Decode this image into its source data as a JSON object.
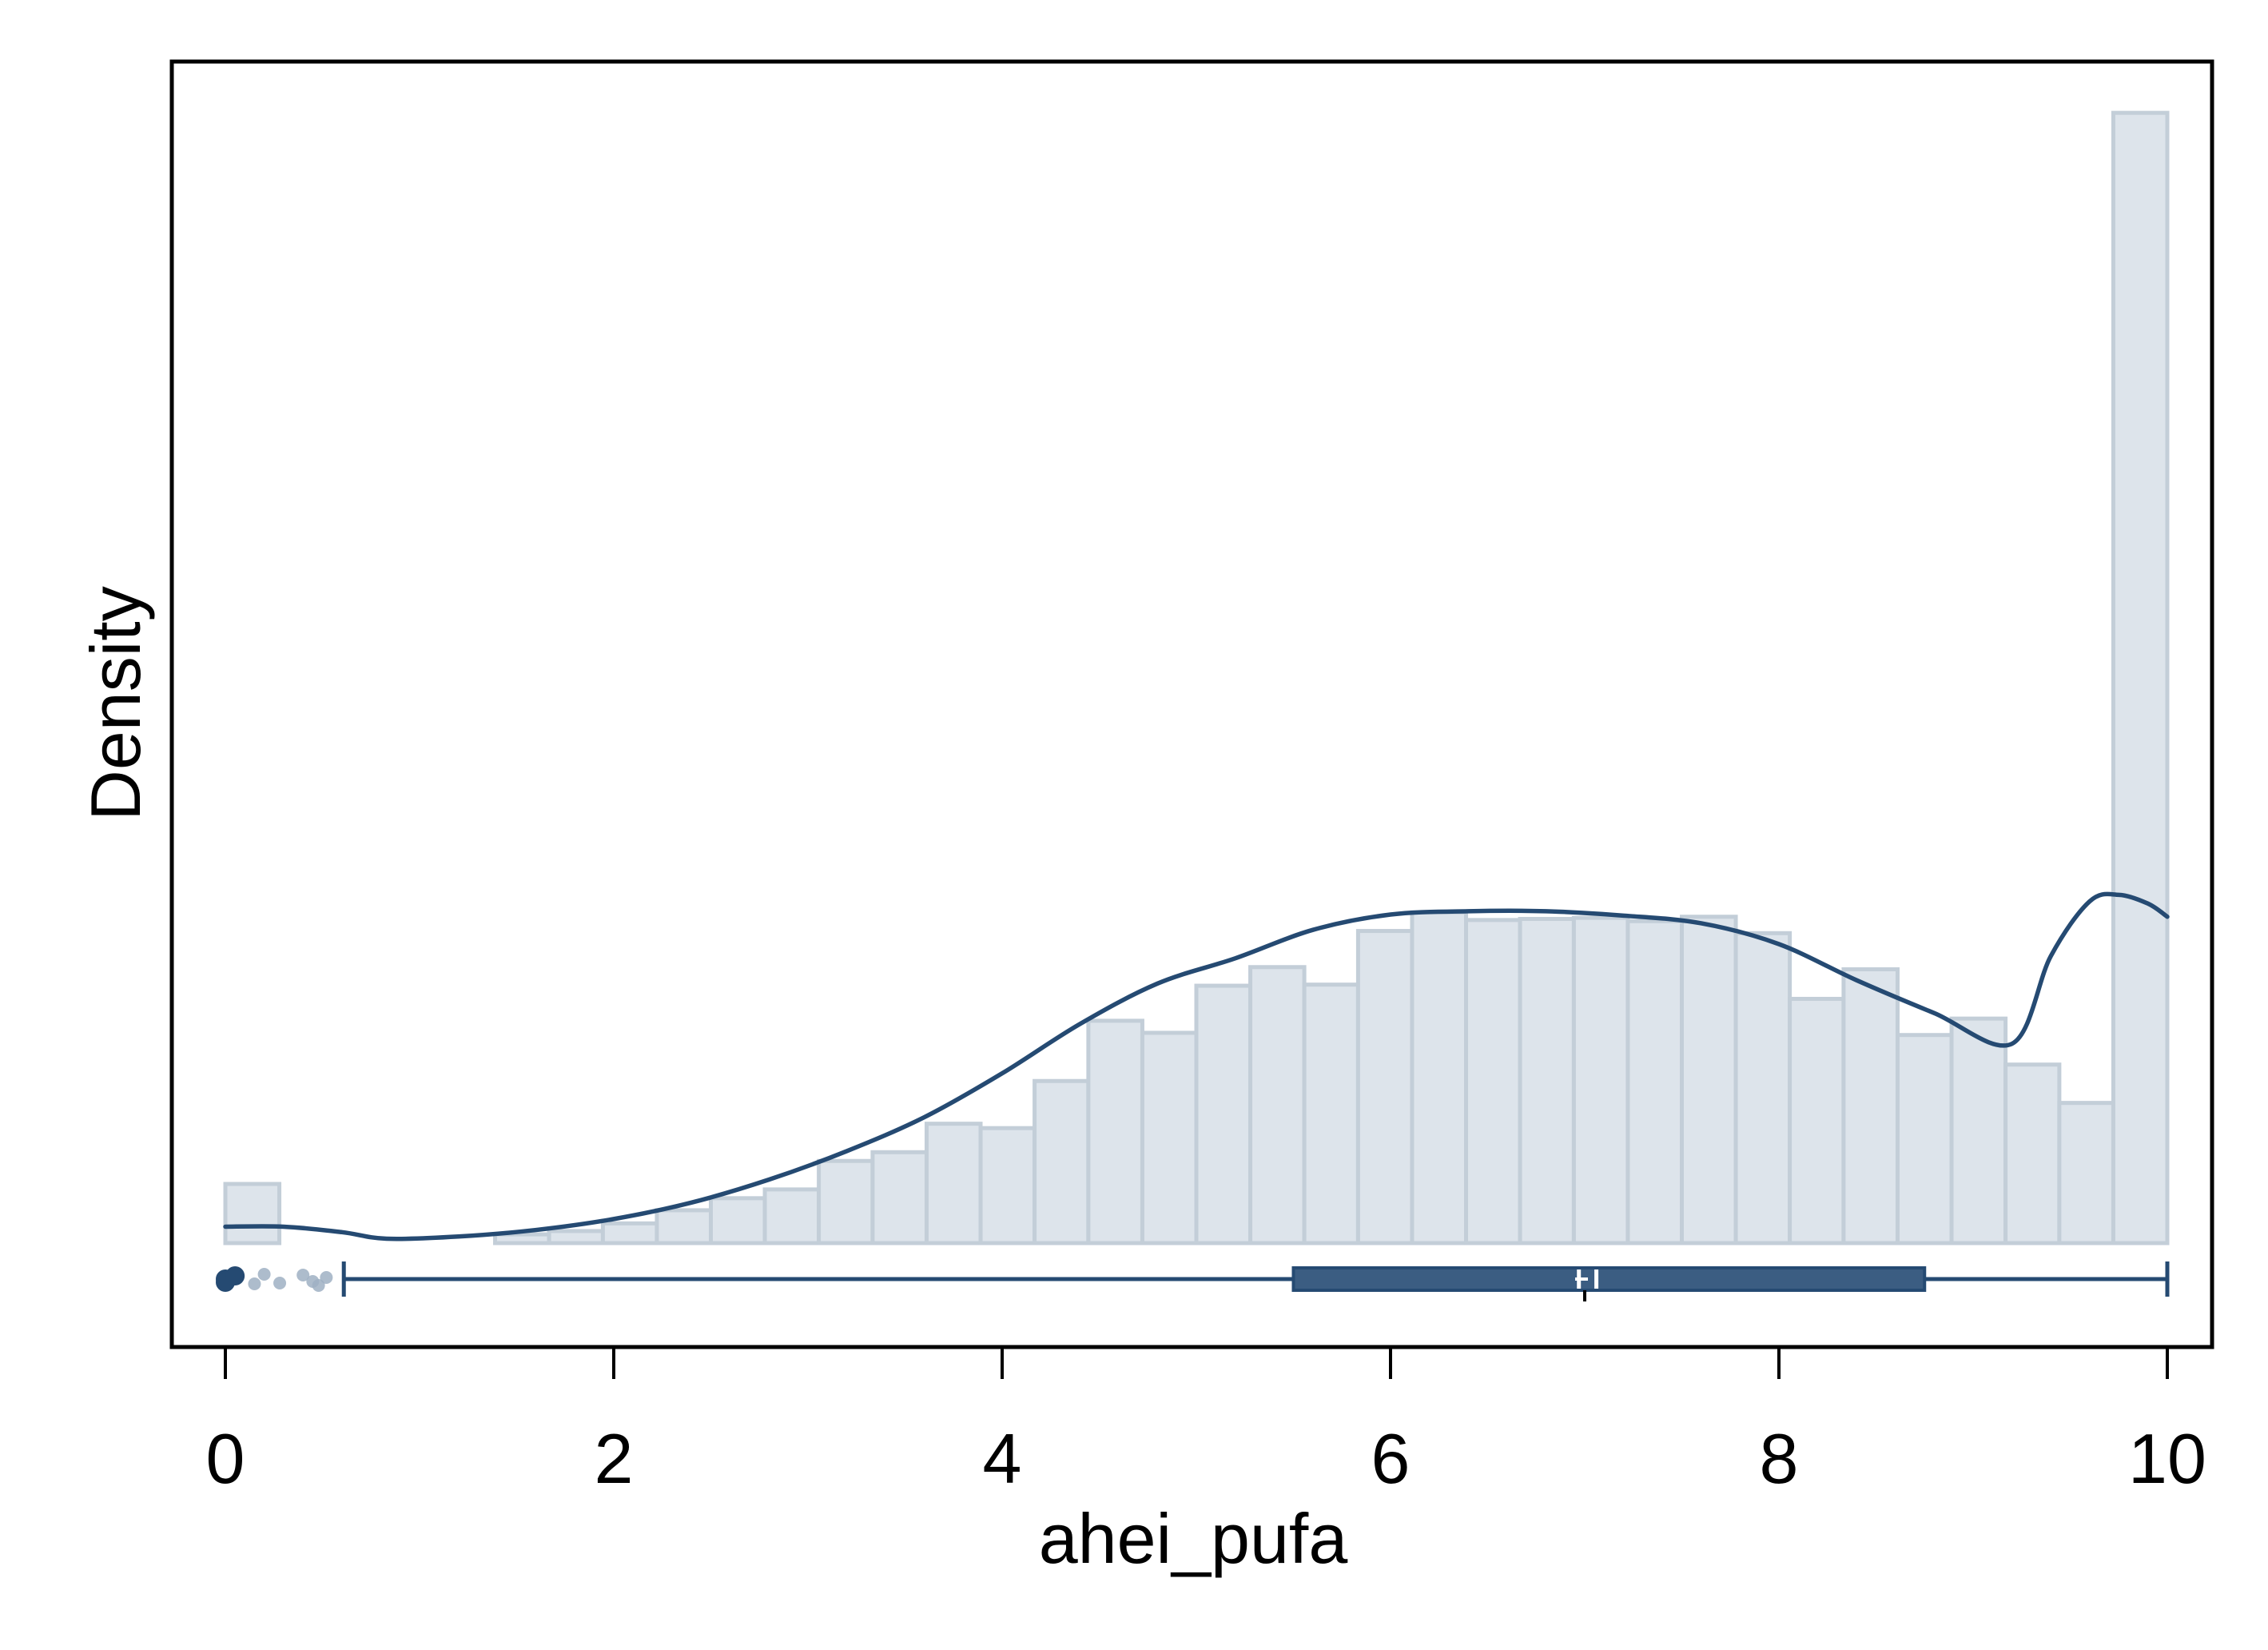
{
  "chart_data": {
    "type": "histogram",
    "xlabel": "ahei_pufa",
    "ylabel": "Density",
    "xlim": [
      -0.28,
      10.27
    ],
    "xticks": [
      0,
      2,
      4,
      6,
      8,
      10
    ],
    "y_ticks_shown": false,
    "bin_width": 0.278,
    "bins": [
      {
        "x0": 0.0,
        "x1": 0.278,
        "density": 0.054
      },
      {
        "x0": 0.278,
        "x1": 0.556,
        "density": 0.0
      },
      {
        "x0": 0.556,
        "x1": 0.833,
        "density": 0.0
      },
      {
        "x0": 0.833,
        "x1": 1.111,
        "density": 0.0
      },
      {
        "x0": 1.111,
        "x1": 1.389,
        "density": 0.0
      },
      {
        "x0": 1.389,
        "x1": 1.667,
        "density": 0.008
      },
      {
        "x0": 1.667,
        "x1": 1.944,
        "density": 0.011
      },
      {
        "x0": 1.944,
        "x1": 2.222,
        "density": 0.018
      },
      {
        "x0": 2.222,
        "x1": 2.5,
        "density": 0.03
      },
      {
        "x0": 2.5,
        "x1": 2.778,
        "density": 0.041
      },
      {
        "x0": 2.778,
        "x1": 3.056,
        "density": 0.049
      },
      {
        "x0": 3.056,
        "x1": 3.333,
        "density": 0.075
      },
      {
        "x0": 3.333,
        "x1": 3.611,
        "density": 0.083
      },
      {
        "x0": 3.611,
        "x1": 3.889,
        "density": 0.109
      },
      {
        "x0": 3.889,
        "x1": 4.167,
        "density": 0.105
      },
      {
        "x0": 4.167,
        "x1": 4.444,
        "density": 0.148
      },
      {
        "x0": 4.444,
        "x1": 4.722,
        "density": 0.203
      },
      {
        "x0": 4.722,
        "x1": 5.0,
        "density": 0.192
      },
      {
        "x0": 5.0,
        "x1": 5.278,
        "density": 0.235
      },
      {
        "x0": 5.278,
        "x1": 5.556,
        "density": 0.252
      },
      {
        "x0": 5.556,
        "x1": 5.833,
        "density": 0.236
      },
      {
        "x0": 5.833,
        "x1": 6.111,
        "density": 0.285
      },
      {
        "x0": 6.111,
        "x1": 6.389,
        "density": 0.302
      },
      {
        "x0": 6.389,
        "x1": 6.667,
        "density": 0.295
      },
      {
        "x0": 6.667,
        "x1": 6.944,
        "density": 0.296
      },
      {
        "x0": 6.944,
        "x1": 7.222,
        "density": 0.297
      },
      {
        "x0": 7.222,
        "x1": 7.5,
        "density": 0.294
      },
      {
        "x0": 7.5,
        "x1": 7.778,
        "density": 0.298
      },
      {
        "x0": 7.778,
        "x1": 8.056,
        "density": 0.283
      },
      {
        "x0": 8.056,
        "x1": 8.333,
        "density": 0.223
      },
      {
        "x0": 8.333,
        "x1": 8.611,
        "density": 0.25
      },
      {
        "x0": 8.611,
        "x1": 8.889,
        "density": 0.19
      },
      {
        "x0": 8.889,
        "x1": 9.167,
        "density": 0.205
      },
      {
        "x0": 9.167,
        "x1": 9.444,
        "density": 0.163
      },
      {
        "x0": 9.444,
        "x1": 9.722,
        "density": 0.128
      },
      {
        "x0": 9.722,
        "x1": 10.0,
        "density": 1.032
      }
    ],
    "kde": {
      "x": [
        0.0,
        0.3,
        0.6,
        0.83,
        1.2,
        1.6,
        2.0,
        2.4,
        2.8,
        3.2,
        3.6,
        4.0,
        4.4,
        4.8,
        5.2,
        5.6,
        6.0,
        6.4,
        6.8,
        7.2,
        7.6,
        8.0,
        8.4,
        8.8,
        9.2,
        9.4,
        9.6,
        9.75,
        9.9,
        10.0
      ],
      "density": [
        0.015,
        0.015,
        0.01,
        0.004,
        0.006,
        0.012,
        0.022,
        0.037,
        0.058,
        0.084,
        0.115,
        0.155,
        0.2,
        0.237,
        0.26,
        0.286,
        0.3,
        0.303,
        0.303,
        0.299,
        0.292,
        0.273,
        0.24,
        0.21,
        0.182,
        0.262,
        0.312,
        0.318,
        0.31,
        0.298
      ]
    },
    "boxplot": {
      "whisker_low": 0.61,
      "q1": 5.5,
      "median": 7.0,
      "mean": 7.05,
      "q3": 8.75,
      "whisker_high": 10.0,
      "outliers": [
        0.0,
        0.0,
        0.05,
        0.15,
        0.2,
        0.28,
        0.4,
        0.45,
        0.48,
        0.52
      ]
    },
    "colors": {
      "bar_fill": "#dde4eb",
      "bar_stroke": "#c3ced8",
      "line": "#254a72",
      "box": "#3b5d82",
      "outlier_light": "#9fb0c3"
    },
    "grid": false,
    "legend": "none"
  }
}
